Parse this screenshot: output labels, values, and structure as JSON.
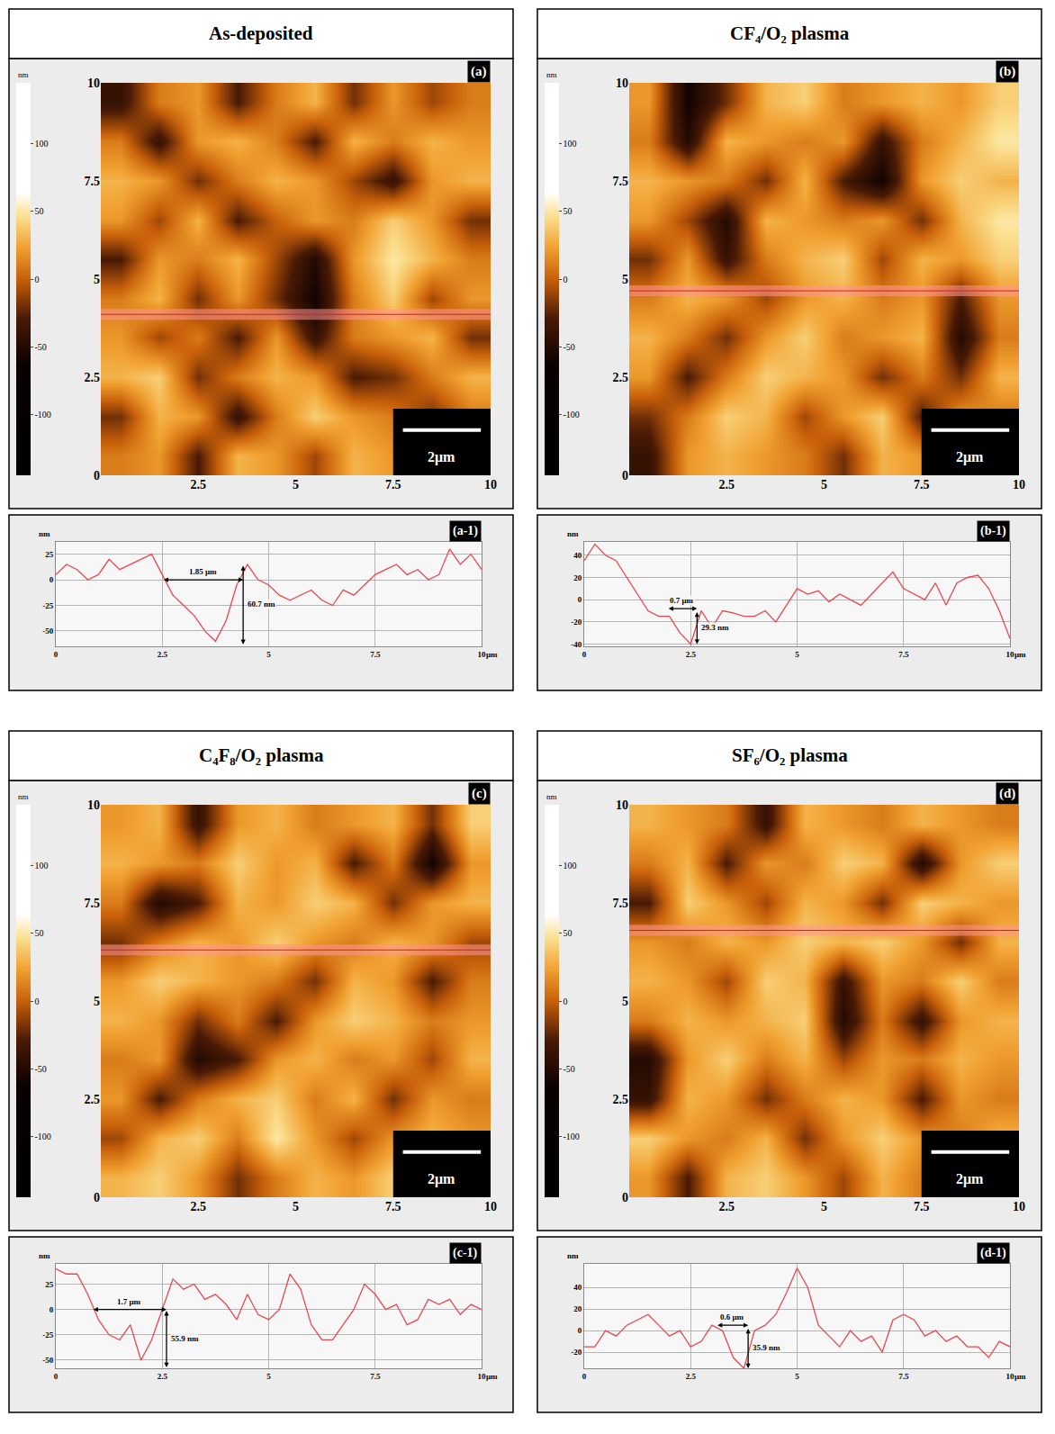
{
  "chart_data": [
    {
      "type": "heatmap",
      "title": "As-deposited",
      "panel": "(a)",
      "x": [
        0.5,
        1.5,
        2.5,
        3.5,
        4.5,
        5.5,
        6.5,
        7.5,
        8.5,
        9.5
      ],
      "y": [
        0.5,
        1.5,
        2.5,
        3.5,
        4.5,
        5.5,
        6.5,
        7.5,
        8.5,
        9.5
      ],
      "z": [
        [
          10,
          20,
          -30,
          30,
          20,
          -10,
          30,
          20,
          40,
          20
        ],
        [
          -20,
          30,
          20,
          -40,
          10,
          40,
          20,
          10,
          -20,
          10
        ],
        [
          30,
          40,
          -20,
          10,
          30,
          20,
          -30,
          -20,
          10,
          30
        ],
        [
          20,
          -10,
          10,
          -30,
          20,
          -40,
          10,
          20,
          30,
          -20
        ],
        [
          10,
          30,
          -20,
          20,
          -20,
          -60,
          10,
          40,
          -10,
          20
        ],
        [
          -30,
          20,
          10,
          30,
          -10,
          -50,
          20,
          50,
          30,
          10
        ],
        [
          20,
          -10,
          30,
          -30,
          0,
          20,
          10,
          40,
          20,
          -20
        ],
        [
          30,
          20,
          -20,
          10,
          30,
          20,
          -10,
          -40,
          20,
          30
        ],
        [
          10,
          -40,
          20,
          30,
          10,
          -30,
          30,
          10,
          30,
          20
        ],
        [
          -40,
          10,
          20,
          -30,
          10,
          30,
          -20,
          20,
          -10,
          10
        ]
      ],
      "xlim": [
        0,
        10
      ],
      "ylim": [
        0,
        10
      ],
      "xticks": [
        2.5,
        5,
        7.5,
        10
      ],
      "yticks": [
        0,
        2.5,
        5,
        7.5,
        10
      ],
      "colorbar": {
        "range": [
          -145,
          145
        ],
        "ticks": [
          100,
          50,
          0,
          -50,
          -100
        ],
        "label": "nm"
      },
      "profile_y": 4.1,
      "scale_bar": {
        "length": 2,
        "label": "2μm"
      }
    },
    {
      "type": "line",
      "panel": "(a-1)",
      "color": "#e8474f",
      "grid": true,
      "xlabel": "μm",
      "ylabel": "nm",
      "x": [
        0,
        0.25,
        0.5,
        0.75,
        1,
        1.25,
        1.5,
        1.75,
        2,
        2.25,
        2.5,
        2.75,
        3,
        3.25,
        3.5,
        3.75,
        4,
        4.25,
        4.5,
        4.75,
        5,
        5.25,
        5.5,
        5.75,
        6,
        6.25,
        6.5,
        6.75,
        7,
        7.25,
        7.5,
        7.75,
        8,
        8.25,
        8.5,
        8.75,
        9,
        9.25,
        9.5,
        9.75,
        10
      ],
      "values": [
        5,
        15,
        10,
        0,
        5,
        20,
        10,
        15,
        20,
        25,
        5,
        -15,
        -25,
        -35,
        -50,
        -60,
        -40,
        -5,
        15,
        0,
        -5,
        -15,
        -20,
        -15,
        -10,
        -20,
        -25,
        -10,
        -15,
        -5,
        5,
        10,
        15,
        5,
        10,
        0,
        5,
        30,
        15,
        25,
        10
      ],
      "xlim": [
        0,
        10
      ],
      "ylim": [
        -65,
        37
      ],
      "xticks": [
        0,
        2.5,
        5,
        7.5,
        10
      ],
      "yticks": [
        -50,
        -25,
        0,
        25
      ],
      "annotations": [
        {
          "text": "1.85 μm",
          "from": [
            2.5,
            0
          ],
          "to": [
            4.4,
            0
          ]
        },
        {
          "text": "60.7 nm",
          "from": [
            4.4,
            15
          ],
          "to": [
            4.4,
            -63
          ]
        }
      ]
    },
    {
      "type": "heatmap",
      "title": "CF₄/O₂ plasma",
      "panel": "(b)",
      "x": [
        0.5,
        1.5,
        2.5,
        3.5,
        4.5,
        5.5,
        6.5,
        7.5,
        8.5,
        9.5
      ],
      "y": [
        0.5,
        1.5,
        2.5,
        3.5,
        4.5,
        5.5,
        6.5,
        7.5,
        8.5,
        9.5
      ],
      "z": [
        [
          -40,
          20,
          30,
          20,
          10,
          -20,
          30,
          20,
          10,
          30
        ],
        [
          -20,
          10,
          40,
          30,
          -10,
          20,
          40,
          -30,
          20,
          10
        ],
        [
          20,
          -30,
          10,
          40,
          30,
          20,
          -20,
          10,
          -20,
          30
        ],
        [
          30,
          10,
          -20,
          20,
          40,
          10,
          20,
          30,
          -50,
          10
        ],
        [
          10,
          30,
          20,
          -10,
          20,
          30,
          10,
          20,
          -30,
          20
        ],
        [
          -20,
          20,
          -40,
          10,
          30,
          40,
          -10,
          30,
          20,
          40
        ],
        [
          20,
          -10,
          -50,
          30,
          20,
          10,
          20,
          -20,
          30,
          50
        ],
        [
          30,
          20,
          10,
          -20,
          30,
          -30,
          -60,
          20,
          40,
          30
        ],
        [
          10,
          -50,
          30,
          20,
          10,
          20,
          -40,
          10,
          30,
          50
        ],
        [
          20,
          -60,
          -20,
          30,
          40,
          10,
          20,
          30,
          20,
          40
        ]
      ],
      "xlim": [
        0,
        10
      ],
      "ylim": [
        0,
        10
      ],
      "xticks": [
        2.5,
        5,
        7.5,
        10
      ],
      "yticks": [
        0,
        2.5,
        5,
        7.5,
        10
      ],
      "colorbar": {
        "range": [
          -145,
          145
        ],
        "ticks": [
          100,
          50,
          0,
          -50,
          -100
        ],
        "label": "nm"
      },
      "profile_y": 4.7,
      "scale_bar": {
        "length": 2,
        "label": "2μm"
      }
    },
    {
      "type": "line",
      "panel": "(b-1)",
      "color": "#e8474f",
      "grid": true,
      "xlabel": "μm",
      "ylabel": "nm",
      "x": [
        0,
        0.25,
        0.5,
        0.75,
        1,
        1.25,
        1.5,
        1.75,
        2,
        2.25,
        2.5,
        2.75,
        3,
        3.25,
        3.5,
        3.75,
        4,
        4.25,
        4.5,
        4.75,
        5,
        5.25,
        5.5,
        5.75,
        6,
        6.25,
        6.5,
        6.75,
        7,
        7.25,
        7.5,
        7.75,
        8,
        8.25,
        8.5,
        8.75,
        9,
        9.25,
        9.5,
        9.75,
        10
      ],
      "values": [
        35,
        50,
        40,
        35,
        20,
        5,
        -10,
        -15,
        -15,
        -30,
        -40,
        -10,
        -25,
        -10,
        -12,
        -15,
        -15,
        -10,
        -20,
        -5,
        10,
        5,
        8,
        -2,
        5,
        0,
        -5,
        5,
        15,
        25,
        10,
        5,
        0,
        15,
        -5,
        15,
        20,
        22,
        10,
        -10,
        -35
      ],
      "xlim": [
        0,
        10
      ],
      "ylim": [
        -42,
        52
      ],
      "xticks": [
        0,
        2.5,
        5,
        7.5,
        10
      ],
      "yticks": [
        -40,
        -20,
        0,
        20,
        40
      ],
      "annotations": [
        {
          "text": "0.7 μm",
          "from": [
            1.95,
            -8
          ],
          "to": [
            2.65,
            -8
          ]
        },
        {
          "text": "29.3 nm",
          "from": [
            2.65,
            -10
          ],
          "to": [
            2.65,
            -40
          ]
        }
      ]
    },
    {
      "type": "heatmap",
      "title": "C₄F₈/O₂ plasma",
      "panel": "(c)",
      "x": [
        0.5,
        1.5,
        2.5,
        3.5,
        4.5,
        5.5,
        6.5,
        7.5,
        8.5,
        9.5
      ],
      "y": [
        0.5,
        1.5,
        2.5,
        3.5,
        4.5,
        5.5,
        6.5,
        7.5,
        8.5,
        9.5
      ],
      "z": [
        [
          30,
          40,
          20,
          -20,
          10,
          30,
          20,
          40,
          10,
          30
        ],
        [
          -10,
          30,
          40,
          10,
          50,
          20,
          -10,
          20,
          30,
          20
        ],
        [
          20,
          -30,
          10,
          30,
          40,
          10,
          30,
          -20,
          20,
          10
        ],
        [
          10,
          20,
          -50,
          -30,
          20,
          30,
          10,
          20,
          -10,
          30
        ],
        [
          30,
          20,
          -20,
          10,
          -30,
          20,
          40,
          30,
          10,
          20
        ],
        [
          20,
          40,
          30,
          20,
          10,
          -20,
          30,
          20,
          -30,
          10
        ],
        [
          -20,
          10,
          30,
          20,
          40,
          20,
          10,
          30,
          20,
          -10
        ],
        [
          10,
          -50,
          -30,
          30,
          20,
          40,
          30,
          -20,
          20,
          30
        ],
        [
          30,
          20,
          10,
          40,
          20,
          30,
          -30,
          10,
          -60,
          20
        ],
        [
          20,
          30,
          -40,
          20,
          30,
          10,
          20,
          30,
          -20,
          40
        ]
      ],
      "xlim": [
        0,
        10
      ],
      "ylim": [
        0,
        10
      ],
      "xticks": [
        2.5,
        5,
        7.5,
        10
      ],
      "yticks": [
        0,
        2.5,
        5,
        7.5,
        10
      ],
      "colorbar": {
        "range": [
          -145,
          145
        ],
        "ticks": [
          100,
          50,
          0,
          -50,
          -100
        ],
        "label": "nm"
      },
      "profile_y": 6.3,
      "scale_bar": {
        "length": 2,
        "label": "2μm"
      }
    },
    {
      "type": "line",
      "panel": "(c-1)",
      "color": "#e8474f",
      "grid": true,
      "xlabel": "μm",
      "ylabel": "nm",
      "x": [
        0,
        0.25,
        0.5,
        0.75,
        1,
        1.25,
        1.5,
        1.75,
        2,
        2.25,
        2.5,
        2.75,
        3,
        3.25,
        3.5,
        3.75,
        4,
        4.25,
        4.5,
        4.75,
        5,
        5.25,
        5.5,
        5.75,
        6,
        6.25,
        6.5,
        6.75,
        7,
        7.25,
        7.5,
        7.75,
        8,
        8.25,
        8.5,
        8.75,
        9,
        9.25,
        9.5,
        9.75,
        10
      ],
      "values": [
        40,
        35,
        35,
        15,
        -10,
        -25,
        -30,
        -15,
        -50,
        -30,
        0,
        30,
        20,
        25,
        10,
        15,
        5,
        -10,
        15,
        -5,
        -10,
        0,
        35,
        20,
        -15,
        -30,
        -30,
        -15,
        0,
        25,
        15,
        0,
        5,
        -15,
        -10,
        10,
        5,
        10,
        -5,
        5,
        0
      ],
      "xlim": [
        0,
        10
      ],
      "ylim": [
        -58,
        45
      ],
      "xticks": [
        0,
        2.5,
        5,
        7.5,
        10
      ],
      "yticks": [
        -50,
        -25,
        0,
        25
      ],
      "annotations": [
        {
          "text": "1.7 μm",
          "from": [
            0.85,
            0
          ],
          "to": [
            2.6,
            0
          ]
        },
        {
          "text": "55.9 nm",
          "from": [
            2.6,
            0
          ],
          "to": [
            2.6,
            -57
          ]
        }
      ]
    },
    {
      "type": "heatmap",
      "title": "SF₆/O₂ plasma",
      "panel": "(d)",
      "x": [
        0.5,
        1.5,
        2.5,
        3.5,
        4.5,
        5.5,
        6.5,
        7.5,
        8.5,
        9.5
      ],
      "y": [
        0.5,
        1.5,
        2.5,
        3.5,
        4.5,
        5.5,
        6.5,
        7.5,
        8.5,
        9.5
      ],
      "z": [
        [
          20,
          -30,
          30,
          40,
          20,
          -10,
          30,
          10,
          -30,
          20
        ],
        [
          40,
          20,
          10,
          30,
          -20,
          20,
          40,
          20,
          10,
          30
        ],
        [
          -40,
          30,
          20,
          -20,
          10,
          30,
          20,
          -30,
          20,
          10
        ],
        [
          -50,
          20,
          40,
          10,
          30,
          -10,
          20,
          10,
          30,
          20
        ],
        [
          10,
          30,
          20,
          30,
          40,
          -50,
          10,
          -40,
          20,
          30
        ],
        [
          30,
          20,
          -10,
          40,
          30,
          -40,
          20,
          10,
          40,
          10
        ],
        [
          20,
          10,
          30,
          20,
          40,
          30,
          40,
          20,
          -20,
          30
        ],
        [
          -30,
          40,
          20,
          -10,
          30,
          20,
          -20,
          40,
          30,
          20
        ],
        [
          10,
          30,
          -30,
          20,
          10,
          40,
          30,
          -50,
          20,
          40
        ],
        [
          30,
          20,
          10,
          -40,
          30,
          20,
          10,
          30,
          20,
          10
        ]
      ],
      "xlim": [
        0,
        10
      ],
      "ylim": [
        0,
        10
      ],
      "xticks": [
        2.5,
        5,
        7.5,
        10
      ],
      "yticks": [
        0,
        2.5,
        5,
        7.5,
        10
      ],
      "colorbar": {
        "range": [
          -145,
          145
        ],
        "ticks": [
          100,
          50,
          0,
          -50,
          -100
        ],
        "label": "nm"
      },
      "profile_y": 6.8,
      "scale_bar": {
        "length": 2,
        "label": "2μm"
      }
    },
    {
      "type": "line",
      "panel": "(d-1)",
      "color": "#e8474f",
      "grid": true,
      "xlabel": "μm",
      "ylabel": "nm",
      "x": [
        0,
        0.25,
        0.5,
        0.75,
        1,
        1.25,
        1.5,
        1.75,
        2,
        2.25,
        2.5,
        2.75,
        3,
        3.25,
        3.5,
        3.75,
        4,
        4.25,
        4.5,
        4.75,
        5,
        5.25,
        5.5,
        5.75,
        6,
        6.25,
        6.5,
        6.75,
        7,
        7.25,
        7.5,
        7.75,
        8,
        8.25,
        8.5,
        8.75,
        9,
        9.25,
        9.5,
        9.75,
        10
      ],
      "values": [
        -15,
        -15,
        0,
        -5,
        5,
        10,
        15,
        5,
        -5,
        0,
        -15,
        -10,
        5,
        0,
        -25,
        -35,
        0,
        5,
        15,
        35,
        58,
        40,
        5,
        -5,
        -15,
        0,
        -10,
        -5,
        -20,
        10,
        15,
        10,
        -5,
        0,
        -10,
        -5,
        -15,
        -15,
        -25,
        -10,
        -15
      ],
      "xlim": [
        0,
        10
      ],
      "ylim": [
        -35,
        62
      ],
      "xticks": [
        0,
        2.5,
        5,
        7.5,
        10
      ],
      "yticks": [
        -20,
        0,
        20,
        40
      ],
      "annotations": [
        {
          "text": "0.6 μm",
          "from": [
            3.1,
            5
          ],
          "to": [
            3.85,
            5
          ]
        },
        {
          "text": "35.9 nm",
          "from": [
            3.85,
            3
          ],
          "to": [
            3.85,
            -35
          ]
        }
      ]
    }
  ]
}
